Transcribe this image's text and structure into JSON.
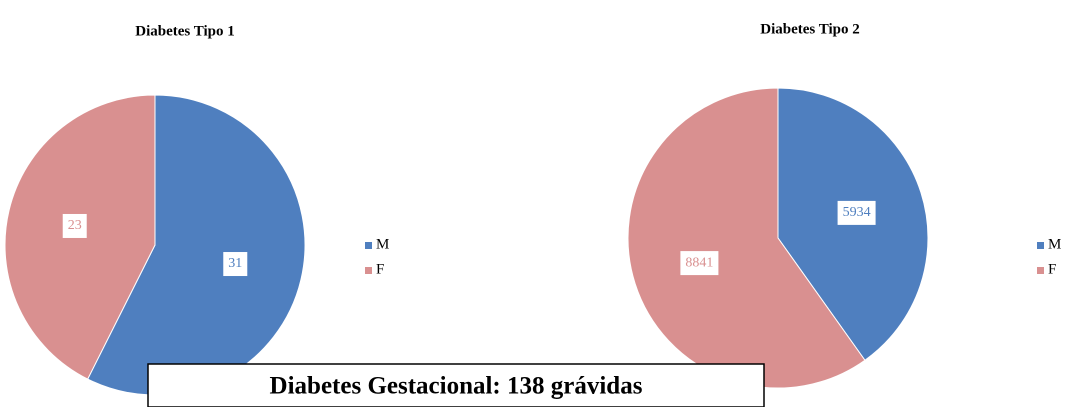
{
  "chart_data": [
    {
      "type": "pie",
      "title": "Diabetes Tipo 1",
      "categories": [
        "M",
        "F"
      ],
      "values": [
        31,
        23
      ],
      "colors": [
        "#4f7fbf",
        "#d99090"
      ],
      "legend": "right"
    },
    {
      "type": "pie",
      "title": "Diabetes Tipo 2",
      "categories": [
        "M",
        "F"
      ],
      "values": [
        5934,
        8841
      ],
      "colors": [
        "#4f7fbf",
        "#d99090"
      ],
      "legend": "right"
    }
  ],
  "caption": "Diabetes Gestacional: 138 grávidas"
}
